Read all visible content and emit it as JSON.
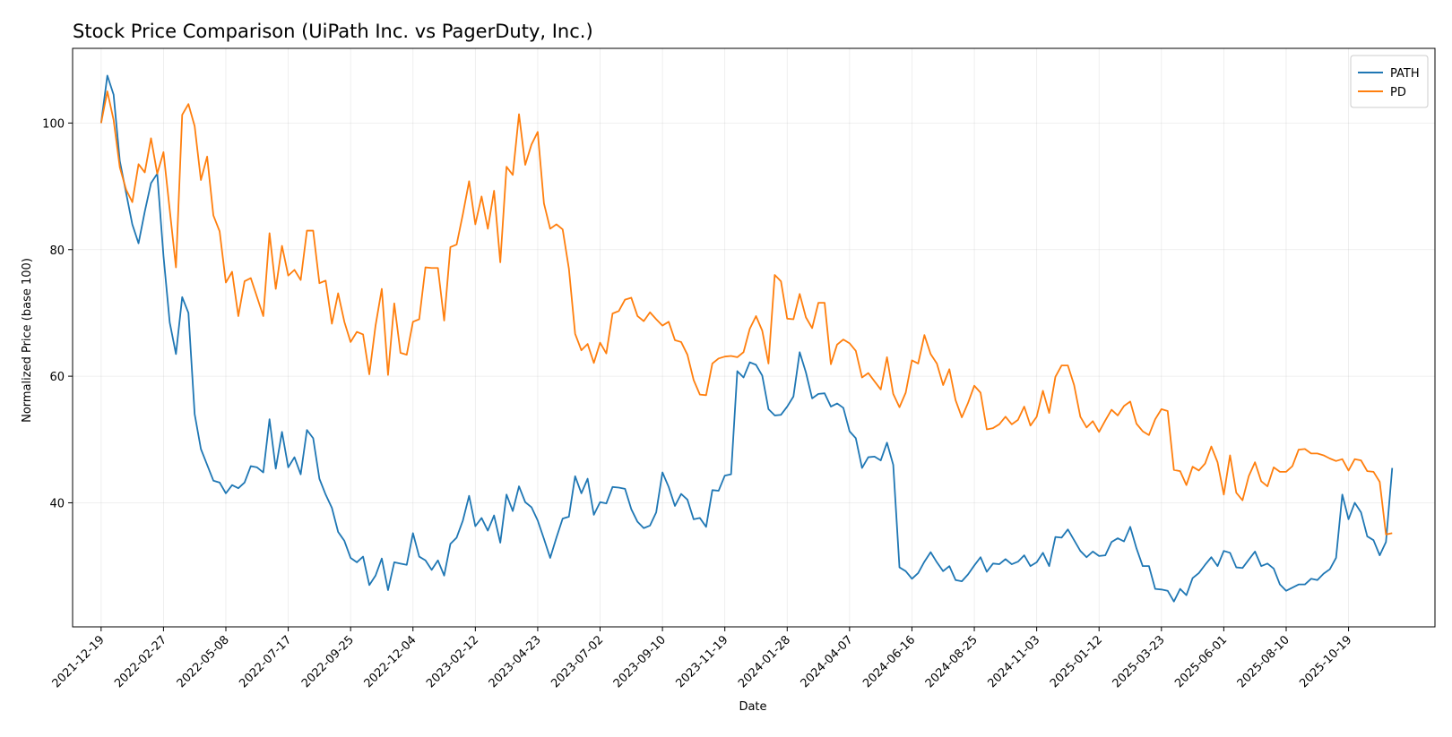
{
  "chart_data": {
    "type": "line",
    "title": "Stock Price Comparison (UiPath Inc. vs PagerDuty, Inc.)",
    "xlabel": "Date",
    "ylabel": "Normalized Price (base 100)",
    "legend_position": "top-right",
    "grid": true,
    "xlim": [
      "2021-11-17",
      "2026-01-24"
    ],
    "ylim": [
      20.4,
      111.8
    ],
    "y_ticks": [
      40,
      60,
      80,
      100
    ],
    "x_ticks": [
      "2021-12-19",
      "2022-02-27",
      "2022-05-08",
      "2022-07-17",
      "2022-09-25",
      "2022-12-04",
      "2023-02-12",
      "2023-04-23",
      "2023-07-02",
      "2023-09-10",
      "2023-11-19",
      "2024-01-28",
      "2024-04-07",
      "2024-06-16",
      "2024-08-25",
      "2024-11-03",
      "2025-01-12",
      "2025-03-23",
      "2025-06-01",
      "2025-08-10",
      "2025-10-19"
    ],
    "start_date": "2021-12-19",
    "sample_interval_days": 7,
    "series": [
      {
        "name": "PATH",
        "color": "#1f77b4",
        "values": [
          100,
          107.5,
          104.5,
          94,
          89,
          84,
          81,
          86,
          90.5,
          92,
          79,
          68.5,
          63.5,
          72.5,
          70,
          54,
          48.5,
          46,
          43.5,
          43.2,
          41.5,
          42.8,
          42.3,
          43.2,
          45.8,
          45.6,
          44.8,
          53.2,
          45.4,
          51.2,
          45.6,
          47.2,
          44.5,
          51.5,
          50.2,
          43.8,
          41.3,
          39.2,
          35.4,
          34,
          31.3,
          30.6,
          31.5,
          27,
          28.5,
          31.2,
          26.2,
          30.6,
          30.4,
          30.2,
          35.2,
          31.5,
          30.9,
          29.4,
          30.9,
          28.5,
          33.5,
          34.5,
          37.2,
          41.1,
          36.3,
          37.6,
          35.6,
          38,
          33.7,
          41.3,
          38.7,
          42.6,
          40.1,
          39.3,
          37.2,
          34.3,
          31.3,
          34.5,
          37.5,
          37.8,
          44.2,
          41.5,
          43.8,
          38.1,
          40.1,
          39.9,
          42.5,
          42.4,
          42.2,
          39,
          37,
          36,
          36.4,
          38.5,
          44.8,
          42.5,
          39.5,
          41.4,
          40.5,
          37.4,
          37.6,
          36.2,
          42,
          41.9,
          44.3,
          44.5,
          60.8,
          59.8,
          62.2,
          61.8,
          60.1,
          54.8,
          53.8,
          53.9,
          55.2,
          56.8,
          63.8,
          60.6,
          56.5,
          57.2,
          57.3,
          55.2,
          55.7,
          55,
          51.3,
          50.2,
          45.5,
          47.2,
          47.3,
          46.7,
          49.5,
          46,
          29.8,
          29.2,
          28,
          28.9,
          30.7,
          32.2,
          30.6,
          29.2,
          30,
          27.8,
          27.6,
          28.7,
          30.1,
          31.4,
          29.1,
          30.4,
          30.3,
          31.1,
          30.3,
          30.7,
          31.7,
          30,
          30.6,
          32.1,
          30,
          34.6,
          34.5,
          35.8,
          34.1,
          32.4,
          31.4,
          32.3,
          31.6,
          31.7,
          33.8,
          34.4,
          33.9,
          36.2,
          32.8,
          30,
          30,
          26.4,
          26.3,
          26.1,
          24.4,
          26.4,
          25.4,
          28.1,
          28.9,
          30.2,
          31.4,
          30,
          32.4,
          32.1,
          29.8,
          29.7,
          31,
          32.3,
          30,
          30.4,
          29.6,
          27.1,
          26.1,
          26.6,
          27.1,
          27.1,
          28,
          27.8,
          28.8,
          29.5,
          31.3,
          41.3,
          37.4,
          40,
          38.5,
          34.7,
          34.1,
          31.7,
          33.8,
          45.5
        ]
      },
      {
        "name": "PD",
        "color": "#ff7f0e",
        "values": [
          100,
          105,
          100.5,
          93,
          89.5,
          87.5,
          93.5,
          92.2,
          97.6,
          92,
          95.4,
          86.3,
          77.2,
          101.3,
          103,
          99.5,
          91,
          94.7,
          85.4,
          82.9,
          74.8,
          76.5,
          69.5,
          75,
          75.5,
          72.5,
          69.5,
          82.6,
          73.8,
          80.6,
          75.9,
          76.8,
          75.2,
          83,
          83,
          74.7,
          75.1,
          68.3,
          73.1,
          68.6,
          65.4,
          67,
          66.6,
          60.3,
          68,
          73.8,
          60.2,
          71.5,
          63.7,
          63.4,
          68.6,
          69,
          77.2,
          77.1,
          77.1,
          68.8,
          80.4,
          80.8,
          85.6,
          90.8,
          84,
          88.4,
          83.3,
          89.3,
          78,
          93.1,
          91.8,
          101.4,
          93.4,
          96.6,
          98.6,
          87.3,
          83.3,
          84,
          83.2,
          77,
          66.7,
          64.1,
          65.1,
          62.1,
          65.3,
          63.6,
          69.9,
          70.3,
          72.1,
          72.4,
          69.5,
          68.7,
          70.1,
          69,
          68,
          68.6,
          65.7,
          65.4,
          63.4,
          59.4,
          57.1,
          57,
          62,
          62.8,
          63.1,
          63.2,
          63,
          63.8,
          67.5,
          69.5,
          67.2,
          62,
          76,
          75,
          69.1,
          69,
          73,
          69.3,
          67.6,
          71.6,
          71.6,
          61.9,
          65,
          65.8,
          65.2,
          64,
          59.8,
          60.5,
          59.2,
          57.9,
          63,
          57.2,
          55.1,
          57.4,
          62.5,
          62,
          66.5,
          63.5,
          62,
          58.6,
          61.1,
          56.2,
          53.5,
          55.8,
          58.5,
          57.4,
          51.6,
          51.8,
          52.4,
          53.6,
          52.4,
          53.1,
          55.2,
          52.2,
          53.6,
          57.7,
          54.2,
          59.9,
          61.7,
          61.7,
          58.6,
          53.6,
          51.9,
          52.9,
          51.2,
          53,
          54.7,
          53.8,
          55.3,
          56,
          52.5,
          51.3,
          50.7,
          53.2,
          54.8,
          54.5,
          45.2,
          45,
          42.8,
          45.7,
          45.1,
          46.2,
          48.9,
          46.4,
          41.3,
          47.5,
          41.6,
          40.4,
          44.2,
          46.4,
          43.4,
          42.6,
          45.6,
          44.9,
          44.9,
          45.8,
          48.4,
          48.5,
          47.8,
          47.8,
          47.5,
          47,
          46.6,
          46.9,
          45.1,
          46.9,
          46.7,
          45,
          44.9,
          43.3,
          35,
          35.2
        ]
      }
    ]
  }
}
